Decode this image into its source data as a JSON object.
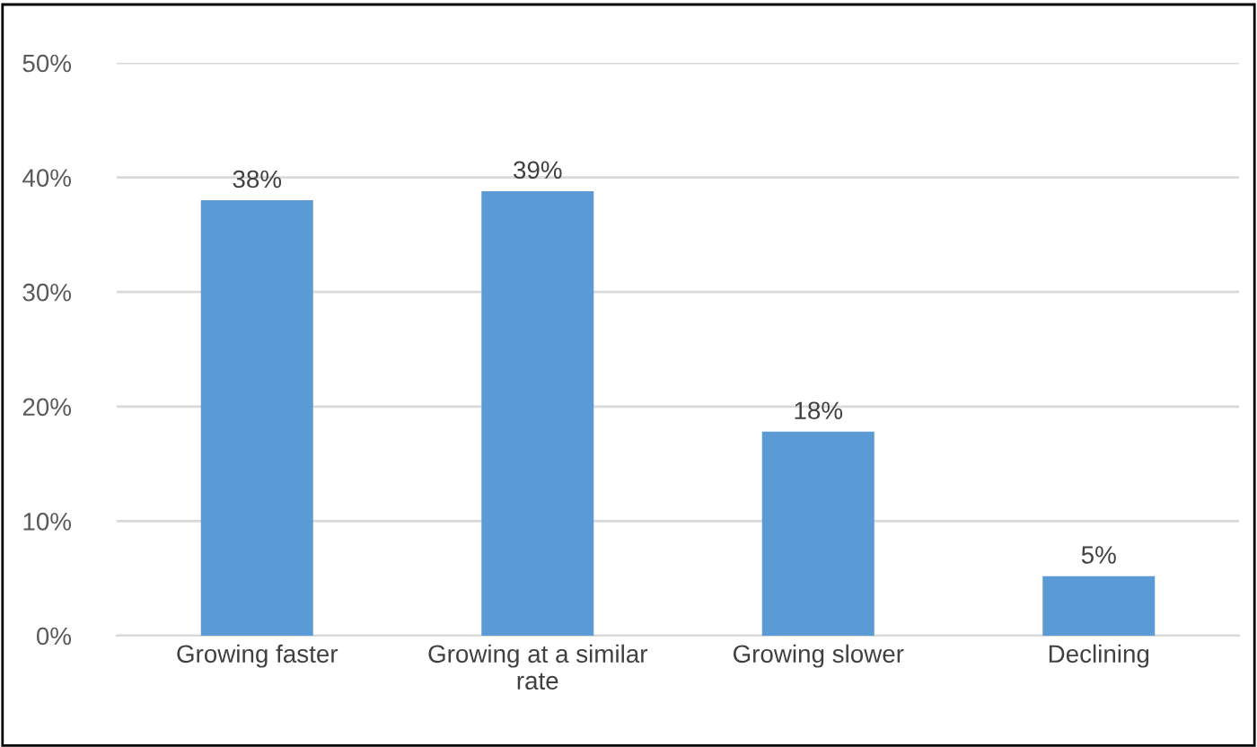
{
  "chart_data": {
    "type": "bar",
    "categories": [
      "Growing faster",
      "Growing at a similar rate",
      "Growing slower",
      "Declining"
    ],
    "values": [
      38,
      38.8,
      17.8,
      5.2
    ],
    "value_labels": [
      "38%",
      "39%",
      "18%",
      "5%"
    ],
    "color": "#5b9bd5",
    "ylim": [
      0,
      50
    ],
    "yticks": [
      {
        "value": 0,
        "label": "0%"
      },
      {
        "value": 10,
        "label": "10%"
      },
      {
        "value": 20,
        "label": "20%"
      },
      {
        "value": 30,
        "label": "30%"
      },
      {
        "value": 40,
        "label": "40%"
      },
      {
        "value": 50,
        "label": "50%"
      }
    ],
    "grid": "y"
  }
}
